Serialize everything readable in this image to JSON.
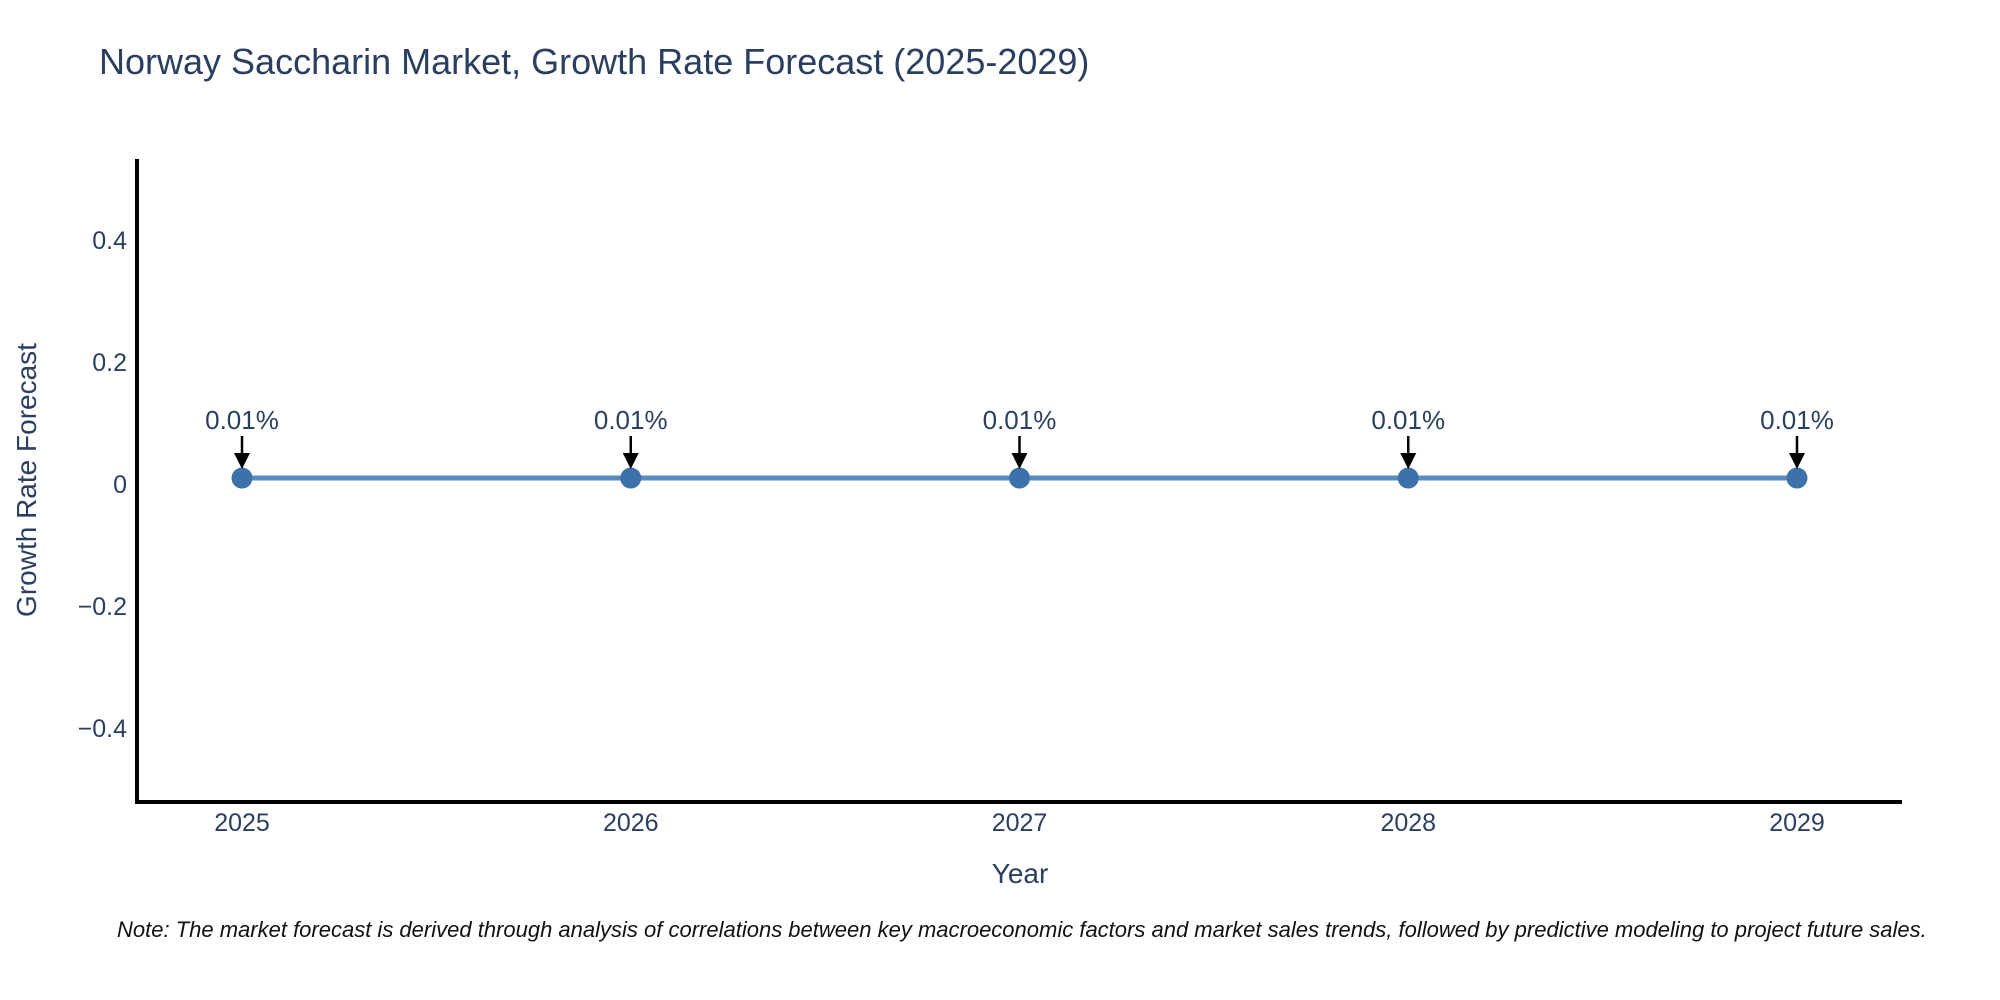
{
  "header": {
    "title": "Norway Saccharin Market, Growth Rate Forecast (2025-2029)"
  },
  "chart_data": {
    "type": "line",
    "title": "Norway Saccharin Market, Growth Rate Forecast (2025-2029)",
    "xlabel": "Year",
    "ylabel": "Growth Rate Forecast",
    "x": [
      2025,
      2026,
      2027,
      2028,
      2029
    ],
    "values": [
      0.01,
      0.01,
      0.01,
      0.01,
      0.01
    ],
    "point_labels": [
      "0.01%",
      "0.01%",
      "0.01%",
      "0.01%",
      "0.01%"
    ],
    "x_ticks": [
      "2025",
      "2026",
      "2027",
      "2028",
      "2029"
    ],
    "y_ticks": [
      0.4,
      0.2,
      0,
      -0.2,
      -0.4
    ],
    "y_tick_labels": [
      "0.4",
      "0.2",
      "0",
      "−0.2",
      "−0.4"
    ],
    "ylim": [
      -0.521,
      0.533
    ],
    "grid": false,
    "legend": "none",
    "annotation_style": "label-with-down-arrow",
    "colors": {
      "line": "#5a8dbe",
      "marker": "#3c72a9",
      "axis": "#000000",
      "tick_label": "#2a3f5f",
      "annotation_text": "#2a3f5f",
      "arrow": "#000000"
    }
  },
  "note": {
    "text": "Note: The market forecast is derived through analysis of correlations between key macroeconomic factors and market sales trends, followed by predictive modeling to project future sales."
  }
}
